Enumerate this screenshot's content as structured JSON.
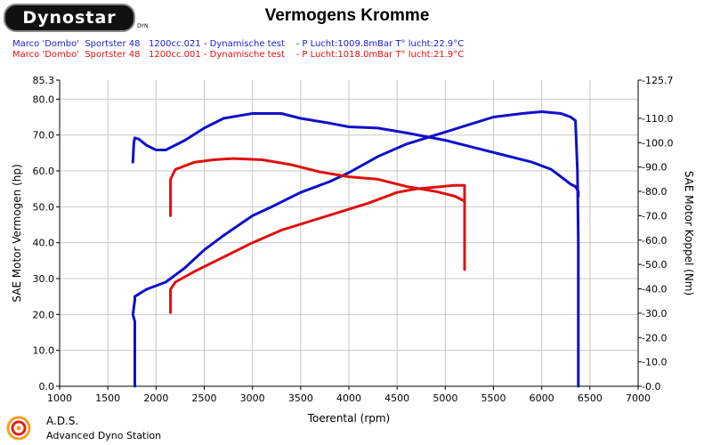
{
  "header": {
    "logo_text": "Dynostar",
    "logo_mark": "DYN",
    "title": "Vermogens Kromme",
    "run_lines": [
      "Marco 'Dombo'  Sportster 48   1200cc.021 - Dynamische test    - P Lucht:1009.8mBar T° lucht:22.9°C",
      "Marco 'Dombo'  Sportster 48   1200cc.001 - Dynamische test    - P Lucht:1018.0mBar T° lucht:21.9°C"
    ]
  },
  "footer": {
    "title": "A.D.S.",
    "subtitle": "Advanced Dyno Station",
    "logo_icon": "ads-swirl-icon"
  },
  "colors": {
    "blue": "#1010c8",
    "red": "#e01010",
    "grid": "#c8c8c8"
  },
  "chart_data": {
    "type": "line",
    "title": "Vermogens Kromme",
    "xlabel": "Toerental (rpm)",
    "ylabel": "SAE Motor Vermogen (hp)",
    "y2label": "SAE Motor Koppel (Nm)",
    "xlim": [
      1000,
      7000
    ],
    "ylim": [
      0,
      85.3
    ],
    "y2lim": [
      0,
      125.7
    ],
    "grid": true,
    "x_ticks": [
      "1000",
      "1500",
      "2000",
      "2500",
      "3000",
      "3500",
      "4000",
      "4500",
      "5000",
      "5500",
      "6000",
      "6500",
      "7000"
    ],
    "y_ticks": [
      "0.0",
      "10.0",
      "20.0",
      "30.0",
      "40.0",
      "50.0",
      "60.0",
      "70.0",
      "80.0",
      "85.3"
    ],
    "y2_ticks": [
      "0.0",
      "10.0",
      "20.0",
      "30.0",
      "40.0",
      "50.0",
      "60.0",
      "70.0",
      "80.0",
      "90.0",
      "100.0",
      "110.0",
      "125.7"
    ],
    "series": [
      {
        "axis": "left",
        "color": "#1010c8",
        "points": [
          [
            1780,
            0
          ],
          [
            1780,
            18
          ],
          [
            1760,
            20
          ],
          [
            1780,
            24
          ],
          [
            1780,
            25
          ],
          [
            1900,
            27
          ],
          [
            2100,
            29
          ],
          [
            2300,
            33
          ],
          [
            2500,
            38
          ],
          [
            2700,
            42
          ],
          [
            3000,
            47.5
          ],
          [
            3200,
            50
          ],
          [
            3500,
            54
          ],
          [
            3800,
            57
          ],
          [
            4000,
            59.5
          ],
          [
            4300,
            64
          ],
          [
            4600,
            67.5
          ],
          [
            4900,
            70
          ],
          [
            5200,
            72.5
          ],
          [
            5500,
            75
          ],
          [
            5800,
            76
          ],
          [
            6000,
            76.5
          ],
          [
            6200,
            76
          ],
          [
            6300,
            75
          ],
          [
            6350,
            74
          ],
          [
            6370,
            60
          ],
          [
            6380,
            40
          ],
          [
            6380,
            0
          ]
        ]
      },
      {
        "axis": "right",
        "color": "#1010c8",
        "points": [
          [
            1760,
            92
          ],
          [
            1770,
            100
          ],
          [
            1780,
            102
          ],
          [
            1820,
            101.5
          ],
          [
            1900,
            99
          ],
          [
            2000,
            97
          ],
          [
            2100,
            97
          ],
          [
            2300,
            101
          ],
          [
            2500,
            106
          ],
          [
            2700,
            110
          ],
          [
            3000,
            112
          ],
          [
            3300,
            112
          ],
          [
            3500,
            110
          ],
          [
            3800,
            108
          ],
          [
            4000,
            106.5
          ],
          [
            4300,
            106
          ],
          [
            4600,
            104
          ],
          [
            5000,
            101
          ],
          [
            5300,
            98
          ],
          [
            5600,
            95
          ],
          [
            5900,
            92
          ],
          [
            6100,
            89
          ],
          [
            6300,
            83
          ],
          [
            6350,
            82
          ],
          [
            6380,
            80
          ],
          [
            6380,
            78
          ]
        ]
      },
      {
        "axis": "left",
        "color": "#e01010",
        "points": [
          [
            2150,
            20.5
          ],
          [
            2150,
            27
          ],
          [
            2200,
            29
          ],
          [
            2400,
            32
          ],
          [
            2700,
            36
          ],
          [
            3000,
            40
          ],
          [
            3300,
            43.5
          ],
          [
            3600,
            46
          ],
          [
            3900,
            48.5
          ],
          [
            4200,
            51
          ],
          [
            4500,
            54
          ],
          [
            4700,
            55
          ],
          [
            4900,
            55.5
          ],
          [
            5100,
            56
          ],
          [
            5200,
            56
          ],
          [
            5200,
            40
          ],
          [
            5200,
            32.5
          ]
        ]
      },
      {
        "axis": "right",
        "color": "#e01010",
        "points": [
          [
            2150,
            70
          ],
          [
            2150,
            85
          ],
          [
            2200,
            89
          ],
          [
            2400,
            92
          ],
          [
            2600,
            93
          ],
          [
            2800,
            93.5
          ],
          [
            3100,
            93
          ],
          [
            3400,
            91
          ],
          [
            3700,
            88
          ],
          [
            4000,
            86
          ],
          [
            4300,
            85
          ],
          [
            4600,
            82
          ],
          [
            4900,
            80
          ],
          [
            5100,
            78
          ],
          [
            5200,
            76
          ],
          [
            5200,
            72
          ]
        ]
      }
    ]
  }
}
